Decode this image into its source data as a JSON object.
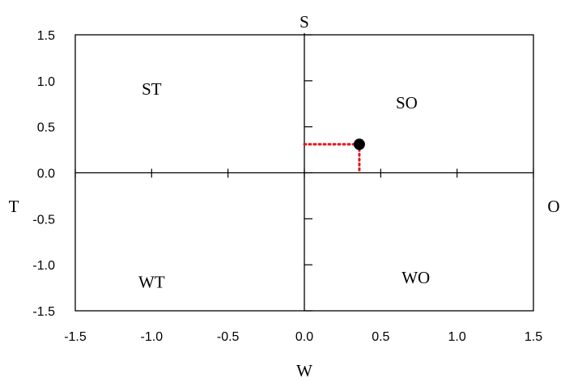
{
  "chart_data": {
    "type": "scatter",
    "xlim": [
      -1.5,
      1.5
    ],
    "ylim": [
      -1.5,
      1.5
    ],
    "x_ticks": [
      -1.5,
      -1.0,
      -0.5,
      0.0,
      0.5,
      1.0,
      1.5
    ],
    "y_ticks": [
      -1.5,
      -1.0,
      -0.5,
      0.0,
      0.5,
      1.0,
      1.5
    ],
    "x_tick_labels": [
      "-1.5",
      "-1.0",
      "-0.5",
      "0.0",
      "0.5",
      "1.0",
      "1.5"
    ],
    "y_tick_labels": [
      "-1.5",
      "-1.0",
      "-0.5",
      "0.0",
      "0.5",
      "1.0",
      "1.5"
    ],
    "xlabel": "W",
    "axis_labels": {
      "top": "S",
      "bottom": "W",
      "left": "T",
      "right": "O"
    },
    "quadrant_labels": [
      {
        "text": "ST",
        "x": -1.0,
        "y": 0.85
      },
      {
        "text": "SO",
        "x": 0.67,
        "y": 0.7
      },
      {
        "text": "WT",
        "x": -1.0,
        "y": -1.25
      },
      {
        "text": "WO",
        "x": 0.73,
        "y": -1.2
      }
    ],
    "points": [
      {
        "x": 0.36,
        "y": 0.31
      }
    ],
    "grid": false,
    "legend": "none",
    "colors": {
      "point": "#000000",
      "guide_lines": "#e8141c",
      "axes": "#000000"
    }
  }
}
